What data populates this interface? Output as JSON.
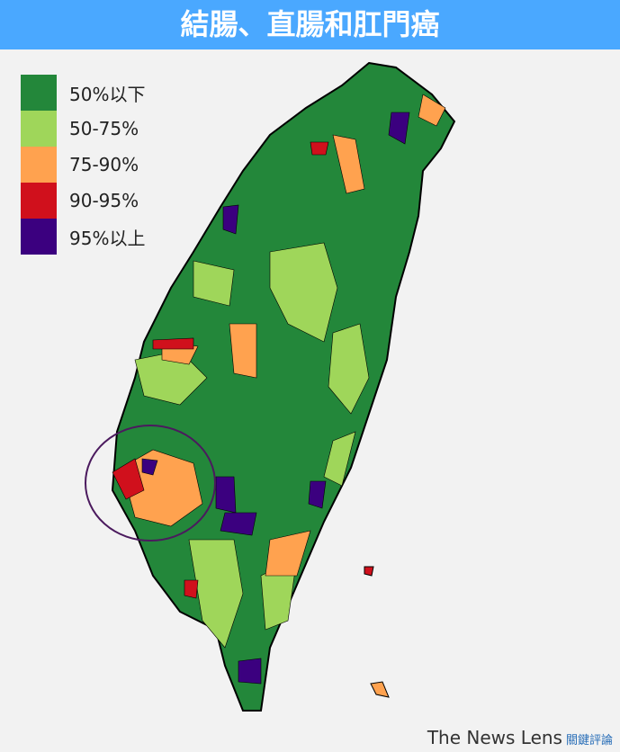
{
  "title": "結腸、直腸和肛門癌",
  "legend": [
    {
      "label": "50%以下",
      "color": "#23873a"
    },
    {
      "label": "50-75%",
      "color": "#9fd65a"
    },
    {
      "label": "75-90%",
      "color": "#ffa24f"
    },
    {
      "label": "90-95%",
      "color": "#d0101c"
    },
    {
      "label": "95%以上",
      "color": "#3b007f"
    }
  ],
  "footer": {
    "brand": "The News Lens",
    "brand_zh": "關鍵評論"
  }
}
